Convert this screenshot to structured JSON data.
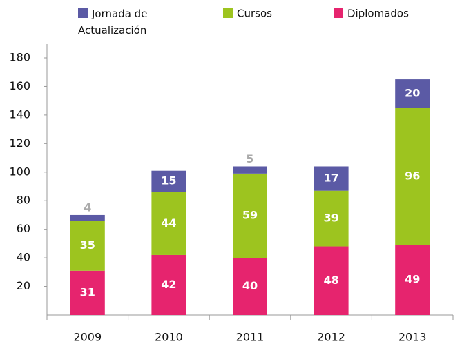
{
  "chart_data": {
    "type": "stacked_bar",
    "categories": [
      "2009",
      "2010",
      "2011",
      "2012",
      "2013"
    ],
    "series": [
      {
        "name": "Diplomados",
        "color": "#e6246e",
        "values": [
          31,
          42,
          40,
          48,
          49
        ]
      },
      {
        "name": "Cursos",
        "color": "#9dc41f",
        "values": [
          35,
          44,
          59,
          39,
          96
        ]
      },
      {
        "name": "Jornada de Actualización",
        "color": "#5b5aa5",
        "values": [
          4,
          15,
          5,
          17,
          20
        ]
      }
    ],
    "legend_order": [
      2,
      1,
      0
    ],
    "ylim": [
      0,
      180
    ],
    "yticks": [
      20,
      40,
      60,
      80,
      100,
      120,
      140,
      160,
      180
    ],
    "grid": false
  }
}
